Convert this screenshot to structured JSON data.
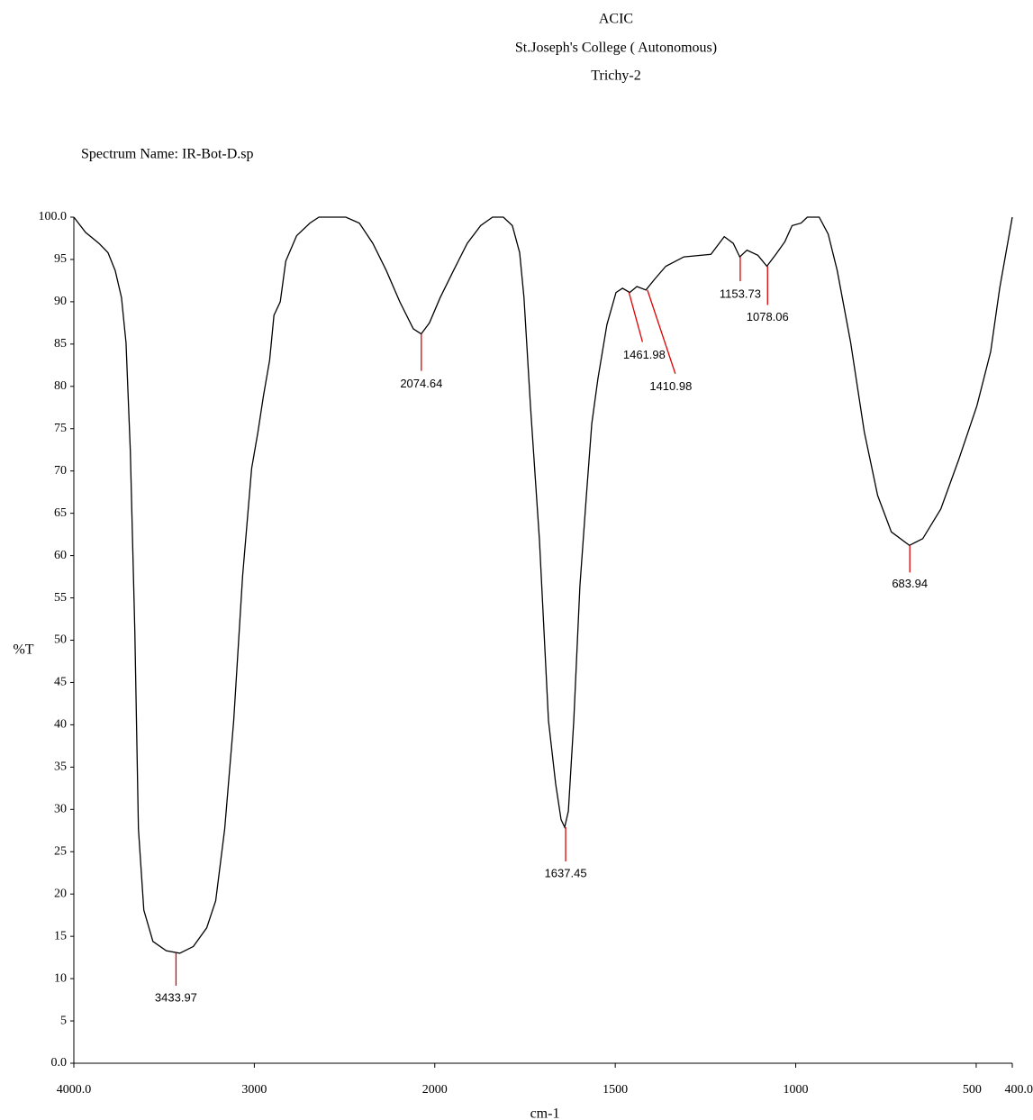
{
  "chart_data": {
    "type": "line",
    "header": [
      "ACIC",
      "St.Joseph's College ( Autonomous)",
      "Trichy-2"
    ],
    "title": "Spectrum Name: IR-Bot-D.sp",
    "ylabel": "%T",
    "xlabel": "cm-1",
    "color": "#000000",
    "x": [
      4000,
      3935,
      3861,
      3811,
      3771,
      3736,
      3711,
      3687,
      3662,
      3642,
      3612,
      3562,
      3488,
      3413,
      3338,
      3264,
      3214,
      3164,
      3114,
      3065,
      3015,
      2980,
      2950,
      2915,
      2891,
      2856,
      2826,
      2766,
      2692,
      2642,
      2493,
      2418,
      2343,
      2269,
      2194,
      2119,
      2075,
      2030,
      1985,
      1948,
      1910,
      1873,
      1840,
      1810,
      1785,
      1765,
      1753,
      1735,
      1710,
      1685,
      1665,
      1650,
      1640,
      1630,
      1615,
      1598,
      1580,
      1565,
      1548,
      1523,
      1498,
      1480,
      1460,
      1440,
      1415,
      1390,
      1360,
      1310,
      1235,
      1198,
      1173,
      1155,
      1135,
      1105,
      1080,
      1055,
      1030,
      1010,
      985,
      968,
      935,
      910,
      885,
      848,
      810,
      773,
      735,
      685,
      648,
      598,
      548,
      498,
      460,
      435,
      400
    ],
    "values": [
      100,
      98.2,
      96.9,
      95.8,
      93.7,
      90.5,
      85.2,
      72.4,
      51.1,
      27.7,
      18.1,
      14.4,
      13.3,
      13.0,
      13.8,
      16.0,
      19.2,
      27.7,
      40.5,
      57.6,
      70.3,
      74.6,
      78.8,
      83.1,
      88.4,
      90.0,
      94.8,
      97.8,
      99.3,
      100,
      100,
      99.3,
      96.9,
      93.7,
      90.0,
      86.8,
      86.2,
      87.5,
      90.5,
      93.7,
      96.9,
      99.0,
      100,
      100,
      99.0,
      95.8,
      90.5,
      77.7,
      61.8,
      40.5,
      33.0,
      28.8,
      27.9,
      29.8,
      40.5,
      56.4,
      67.1,
      75.6,
      80.9,
      87.3,
      91.1,
      91.6,
      91.1,
      91.8,
      91.4,
      92.7,
      94.2,
      95.3,
      95.6,
      97.7,
      96.9,
      95.3,
      96.1,
      95.5,
      94.2,
      95.6,
      97.1,
      99.0,
      99.3,
      100,
      100,
      98.0,
      93.7,
      85.2,
      74.6,
      67.1,
      62.8,
      61.2,
      62.0,
      65.5,
      71.4,
      77.7,
      84.1,
      91.6,
      100
    ],
    "peak_color": "#e00000",
    "peaks": [
      {
        "wavenumber": 3433.97,
        "transmittance": 13.0
      },
      {
        "wavenumber": 2074.64,
        "transmittance": 86.2
      },
      {
        "wavenumber": 1637.45,
        "transmittance": 27.9
      },
      {
        "wavenumber": 1461.98,
        "transmittance": 91.1
      },
      {
        "wavenumber": 1410.98,
        "transmittance": 91.4
      },
      {
        "wavenumber": 1153.73,
        "transmittance": 95.3
      },
      {
        "wavenumber": 1078.06,
        "transmittance": 94.2
      },
      {
        "wavenumber": 683.94,
        "transmittance": 61.2
      }
    ],
    "xlim": [
      4000,
      400
    ],
    "x_scale_change": 2000,
    "xticks": [
      {
        "value": 4000,
        "label": "4000.0"
      },
      3000,
      2000,
      1500,
      1000,
      500,
      {
        "value": 400,
        "label": "400.0"
      }
    ],
    "ylim": [
      0,
      100
    ],
    "yticks": [
      {
        "value": 0,
        "label": "0.0"
      },
      5,
      10,
      15,
      20,
      25,
      30,
      35,
      40,
      45,
      50,
      55,
      60,
      65,
      70,
      75,
      80,
      85,
      90,
      95,
      {
        "value": 100,
        "label": "100.0"
      }
    ]
  }
}
